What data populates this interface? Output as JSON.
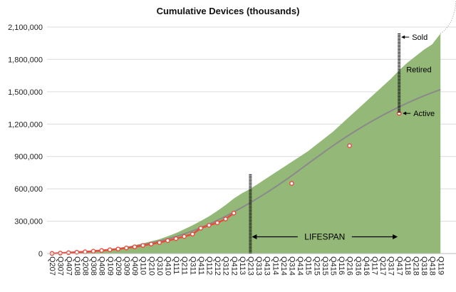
{
  "chart_data": {
    "type": "area",
    "title": "Cumulative Devices (thousands)",
    "xlabel": "",
    "ylabel": "",
    "ylim": [
      0,
      2100000
    ],
    "grid": true,
    "y_ticks": [
      0,
      300000,
      600000,
      900000,
      1200000,
      1500000,
      1800000,
      2100000
    ],
    "y_tick_labels": [
      "0",
      "300,000",
      "600,000",
      "900,000",
      "1,200,000",
      "1,500,000",
      "1,800,000",
      "2,100,000"
    ],
    "categories": [
      "Q207",
      "Q307",
      "Q407",
      "Q108",
      "Q208",
      "Q308",
      "Q408",
      "Q109",
      "Q209",
      "Q309",
      "Q409",
      "Q110",
      "Q210",
      "Q310",
      "Q410",
      "Q111",
      "Q211",
      "Q311",
      "Q411",
      "Q112",
      "Q212",
      "Q312",
      "Q412",
      "Q113",
      "Q213",
      "Q313",
      "Q413",
      "Q114",
      "Q214",
      "Q314",
      "Q414",
      "Q115",
      "Q215",
      "Q315",
      "Q415",
      "Q116",
      "Q216",
      "Q316",
      "Q416",
      "Q117",
      "Q217",
      "Q317",
      "Q417",
      "Q118",
      "Q218",
      "Q318",
      "Q418",
      "Q119"
    ],
    "series": [
      {
        "kind": "area",
        "color": "#93b877",
        "values": [
          1000,
          3000,
          6000,
          10000,
          14000,
          20000,
          28000,
          38000,
          50000,
          62000,
          78000,
          95000,
          113000,
          133000,
          160000,
          190000,
          225000,
          262000,
          302000,
          345000,
          395000,
          450000,
          510000,
          560000,
          600000,
          650000,
          700000,
          750000,
          800000,
          850000,
          900000,
          950000,
          1010000,
          1070000,
          1130000,
          1200000,
          1270000,
          1340000,
          1410000,
          1480000,
          1550000,
          1620000,
          1700000,
          1770000,
          1830000,
          1890000,
          1940000,
          2040000
        ]
      },
      {
        "kind": "trend",
        "color": "#8a8a8a",
        "values": [
          2000,
          4000,
          8000,
          12000,
          17000,
          22000,
          28000,
          36000,
          45000,
          56000,
          68000,
          82000,
          98000,
          116000,
          136000,
          158000,
          182000,
          210000,
          240000,
          272000,
          308000,
          346000,
          386000,
          428000,
          472000,
          518000,
          566000,
          616000,
          668000,
          722000,
          778000,
          834000,
          890000,
          946000,
          1000000,
          1052000,
          1102000,
          1150000,
          1196000,
          1240000,
          1282000,
          1322000,
          1360000,
          1396000,
          1430000,
          1462000,
          1492000,
          1520000
        ]
      },
      {
        "kind": "points",
        "color": "#e84a3c",
        "points": [
          {
            "x": "Q207",
            "y": 1000
          },
          {
            "x": "Q307",
            "y": 4000
          },
          {
            "x": "Q407",
            "y": 8000
          },
          {
            "x": "Q108",
            "y": 12000
          },
          {
            "x": "Q208",
            "y": 16000
          },
          {
            "x": "Q308",
            "y": 22000
          },
          {
            "x": "Q408",
            "y": 28000
          },
          {
            "x": "Q109",
            "y": 35000
          },
          {
            "x": "Q209",
            "y": 42000
          },
          {
            "x": "Q309",
            "y": 52000
          },
          {
            "x": "Q409",
            "y": 62000
          },
          {
            "x": "Q110",
            "y": 75000
          },
          {
            "x": "Q210",
            "y": 88000
          },
          {
            "x": "Q310",
            "y": 102000
          },
          {
            "x": "Q410",
            "y": 120000
          },
          {
            "x": "Q111",
            "y": 138000
          },
          {
            "x": "Q211",
            "y": 158000
          },
          {
            "x": "Q311",
            "y": 180000
          },
          {
            "x": "Q411",
            "y": 235000
          },
          {
            "x": "Q112",
            "y": 262000
          },
          {
            "x": "Q212",
            "y": 285000
          },
          {
            "x": "Q312",
            "y": 320000
          },
          {
            "x": "Q412",
            "y": 375000
          },
          {
            "x": "Q314",
            "y": 650000
          },
          {
            "x": "Q216",
            "y": 1000000
          },
          {
            "x": "Q417",
            "y": 1300000
          }
        ]
      }
    ],
    "annotations": {
      "sold": "Sold",
      "retired": "Retired",
      "active": "Active",
      "lifespan": "LIFESPAN"
    },
    "markers": {
      "lifespan_start": "Q213",
      "lifespan_end": "Q417",
      "sold_value": 2040000,
      "active_value": 1300000
    }
  }
}
